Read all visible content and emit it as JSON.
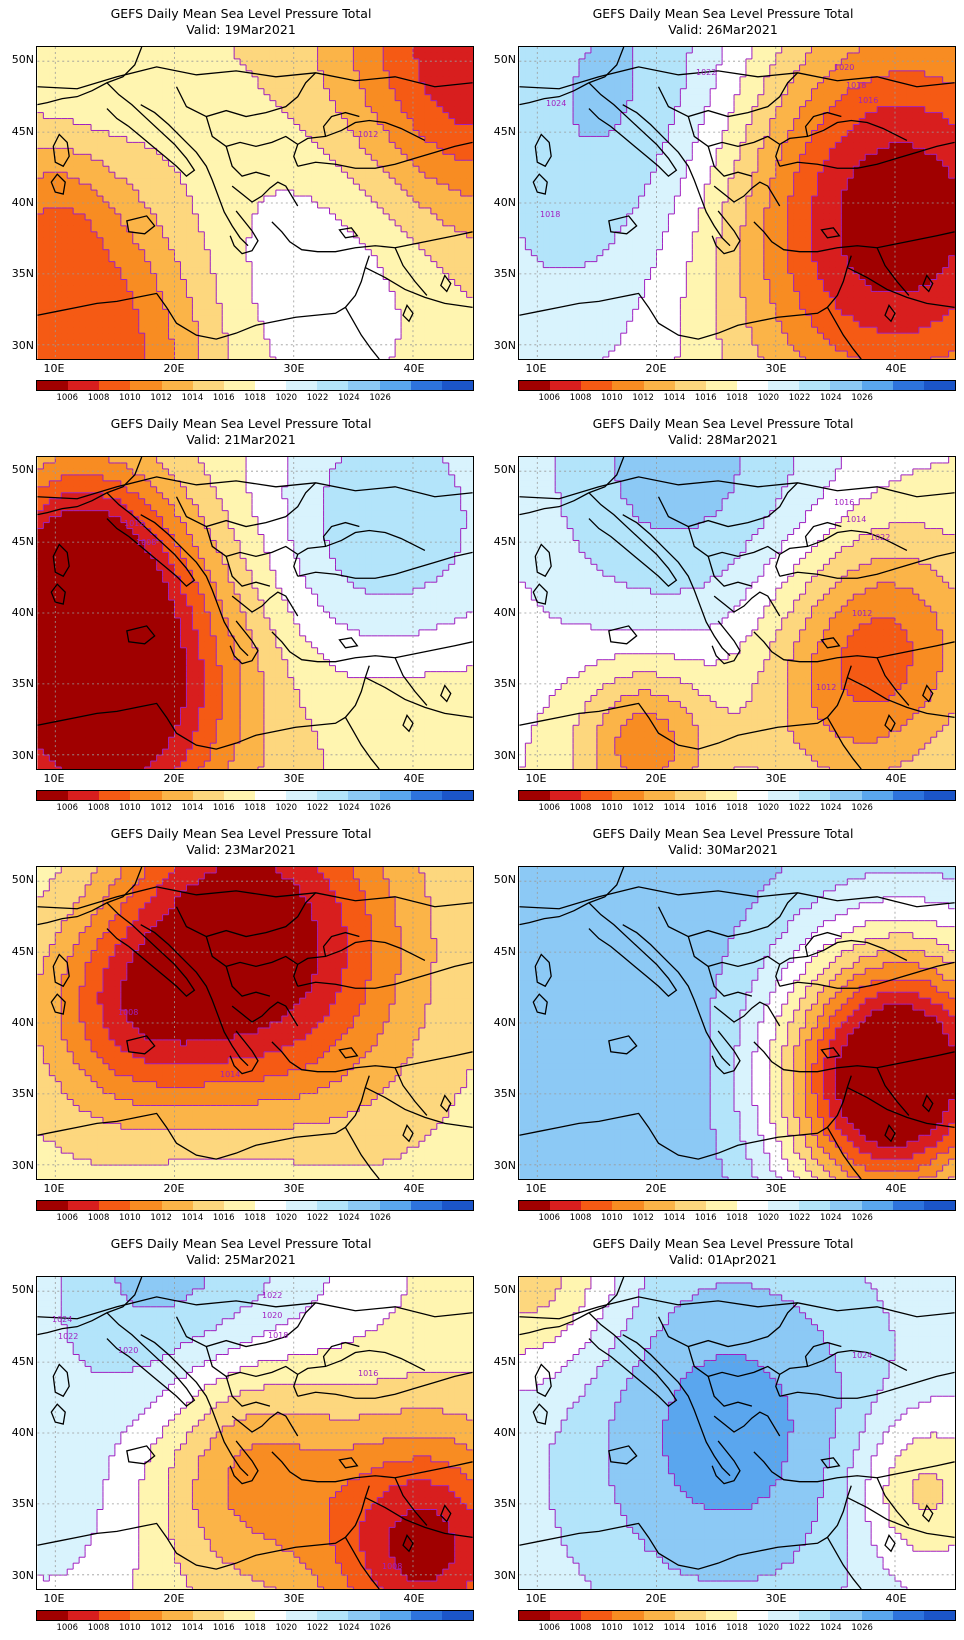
{
  "palette": {
    "bins": [
      "#a00000",
      "#d81e1e",
      "#f55a14",
      "#f88c22",
      "#fbb448",
      "#fdd77e",
      "#fff5b0",
      "#ffffff",
      "#d9f3fd",
      "#b3e4fa",
      "#8cc9f5",
      "#5aa6ee",
      "#2d73dd",
      "#1b55c8"
    ],
    "labels": [
      "1006",
      "1008",
      "1010",
      "1012",
      "1014",
      "1016",
      "1018",
      "1020",
      "1022",
      "1024",
      "1026"
    ],
    "isobar_color": "#a020c0",
    "coast_color": "#000000"
  },
  "axes": {
    "lat_labels": [
      "50N",
      "45N",
      "40N",
      "35N",
      "30N"
    ],
    "lon_labels": [
      "10E",
      "20E",
      "30E",
      "40E"
    ]
  },
  "panels": [
    {
      "title": "GEFS Daily Mean Sea Level Pressure Total",
      "valid": "Valid: 19Mar2021",
      "base": 1016,
      "centers": [
        {
          "lon": 13,
          "lat": 30,
          "amp": -8,
          "r": 7
        },
        {
          "lon": 10,
          "lat": 40,
          "amp": -4,
          "r": 4
        },
        {
          "lon": 45,
          "lat": 50,
          "amp": -10,
          "r": 8
        },
        {
          "lon": 32,
          "lat": 35,
          "amp": 4,
          "r": 8
        },
        {
          "lon": 12,
          "lat": 47,
          "amp": 2,
          "r": 5
        }
      ],
      "isobar_labels": [
        {
          "text": "1012",
          "lon": 36,
          "lat": 44.8
        }
      ]
    },
    {
      "title": "GEFS Daily Mean Sea Level Pressure Total",
      "valid": "Valid: 26Mar2021",
      "base": 1018,
      "centers": [
        {
          "lon": 40,
          "lat": 39,
          "amp": -14,
          "r": 10
        },
        {
          "lon": 12,
          "lat": 36,
          "amp": 3,
          "r": 9
        },
        {
          "lon": 18,
          "lat": 50,
          "amp": 6,
          "r": 9
        }
      ],
      "isobar_labels": [
        {
          "text": "1022",
          "lon": 24,
          "lat": 49.2
        },
        {
          "text": "1020",
          "lon": 35.5,
          "lat": 49.5
        },
        {
          "text": "1018",
          "lon": 36.5,
          "lat": 48.3
        },
        {
          "text": "1016",
          "lon": 37.5,
          "lat": 47.2
        },
        {
          "text": "1024",
          "lon": 11.5,
          "lat": 47
        },
        {
          "text": "1018",
          "lon": 11,
          "lat": 39.2
        }
      ]
    },
    {
      "title": "GEFS Daily Mean Sea Level Pressure Total",
      "valid": "Valid: 21Mar2021",
      "base": 1017,
      "centers": [
        {
          "lon": 14,
          "lat": 35,
          "amp": -16,
          "r": 8
        },
        {
          "lon": 12,
          "lat": 44,
          "amp": -8,
          "r": 5
        },
        {
          "lon": 38,
          "lat": 46,
          "amp": 7,
          "r": 8
        },
        {
          "lon": 40,
          "lat": 33,
          "amp": -2,
          "r": 6
        }
      ],
      "isobar_labels": [
        {
          "text": "1012",
          "lon": 16.5,
          "lat": 46.3
        },
        {
          "text": "1008",
          "lon": 17.5,
          "lat": 45
        }
      ]
    },
    {
      "title": "GEFS Daily Mean Sea Level Pressure Total",
      "valid": "Valid: 28Mar2021",
      "base": 1018,
      "centers": [
        {
          "lon": 22,
          "lat": 51,
          "amp": 7,
          "r": 10
        },
        {
          "lon": 39,
          "lat": 38,
          "amp": -8,
          "r": 6
        },
        {
          "lon": 19,
          "lat": 31,
          "amp": -8,
          "r": 4
        },
        {
          "lon": 34,
          "lat": 33,
          "amp": -3,
          "r": 6
        }
      ],
      "isobar_labels": [
        {
          "text": "1016",
          "lon": 35.5,
          "lat": 47.8
        },
        {
          "text": "1014",
          "lon": 36.5,
          "lat": 46.6
        },
        {
          "text": "1022",
          "lon": 38.5,
          "lat": 45.3
        },
        {
          "text": "1012",
          "lon": 37,
          "lat": 40
        },
        {
          "text": "1012",
          "lon": 34,
          "lat": 34.8
        }
      ]
    },
    {
      "title": "GEFS Daily Mean Sea Level Pressure Total",
      "valid": "Valid: 23Mar2021",
      "base": 1017,
      "centers": [
        {
          "lon": 26,
          "lat": 45,
          "amp": -14,
          "r": 9
        },
        {
          "lon": 16,
          "lat": 41,
          "amp": -5,
          "r": 5
        },
        {
          "lon": 25,
          "lat": 29,
          "amp": 3,
          "r": 7
        },
        {
          "lon": 12,
          "lat": 50,
          "amp": 2,
          "r": 5
        }
      ],
      "isobar_labels": [
        {
          "text": "1008",
          "lon": 16,
          "lat": 40.8
        },
        {
          "text": "1014",
          "lon": 24.5,
          "lat": 36.4
        }
      ]
    },
    {
      "title": "GEFS Daily Mean Sea Level Pressure Total",
      "valid": "Valid: 30Mar2021",
      "base": 1025,
      "centers": [
        {
          "lon": 41,
          "lat": 37,
          "amp": -20,
          "r": 7
        },
        {
          "lon": 37,
          "lat": 34,
          "amp": -6,
          "r": 6
        },
        {
          "lon": 20,
          "lat": 32,
          "amp": 1,
          "r": 8
        }
      ],
      "isobar_labels": []
    },
    {
      "title": "GEFS Daily Mean Sea Level Pressure Total",
      "valid": "Valid: 25Mar2021",
      "base": 1017,
      "centers": [
        {
          "lon": 26,
          "lat": 38,
          "amp": -8,
          "r": 6
        },
        {
          "lon": 41,
          "lat": 32,
          "amp": -12,
          "r": 6
        },
        {
          "lon": 20,
          "lat": 51,
          "amp": 8,
          "r": 10
        },
        {
          "lon": 9,
          "lat": 33,
          "amp": 3,
          "r": 6
        }
      ],
      "isobar_labels": [
        {
          "text": "1022",
          "lon": 28,
          "lat": 49.7
        },
        {
          "text": "1020",
          "lon": 28,
          "lat": 48.3
        },
        {
          "text": "1018",
          "lon": 28.5,
          "lat": 46.9
        },
        {
          "text": "1016",
          "lon": 36,
          "lat": 44.2
        },
        {
          "text": "1024",
          "lon": 10.5,
          "lat": 48
        },
        {
          "text": "1022",
          "lon": 11,
          "lat": 46.8
        },
        {
          "text": "1020",
          "lon": 16,
          "lat": 45.8
        },
        {
          "text": "1008",
          "lon": 38,
          "lat": 30.7
        }
      ]
    },
    {
      "title": "GEFS Daily Mean Sea Level Pressure Total",
      "valid": "Valid: 01Apr2021",
      "base": 1020,
      "centers": [
        {
          "lon": 26,
          "lat": 40,
          "amp": 7,
          "r": 10
        },
        {
          "lon": 10,
          "lat": 51,
          "amp": -6,
          "r": 5
        },
        {
          "lon": 42,
          "lat": 36,
          "amp": -6,
          "r": 4
        }
      ],
      "isobar_labels": [
        {
          "text": "1024",
          "lon": 37,
          "lat": 45.5
        }
      ]
    }
  ]
}
